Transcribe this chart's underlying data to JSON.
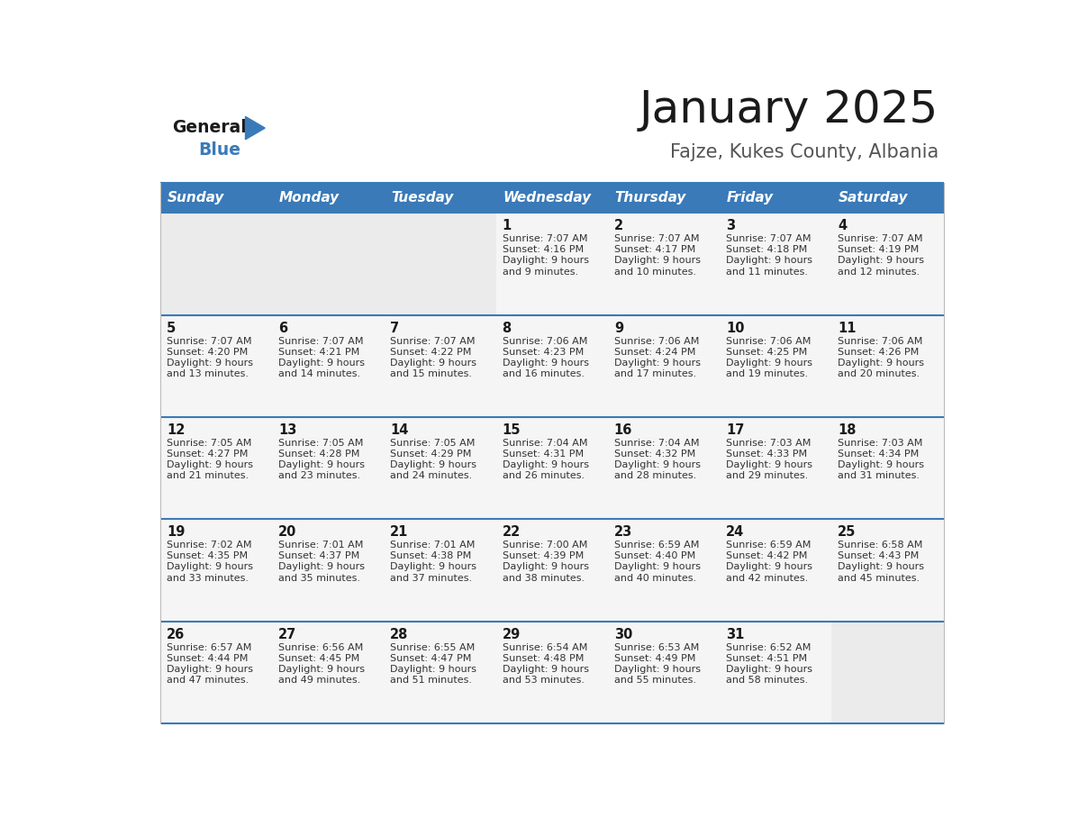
{
  "title": "January 2025",
  "subtitle": "Fajze, Kukes County, Albania",
  "header_color": "#3a7ab8",
  "header_text_color": "#ffffff",
  "border_color": "#3a7ab8",
  "days_of_week": [
    "Sunday",
    "Monday",
    "Tuesday",
    "Wednesday",
    "Thursday",
    "Friday",
    "Saturday"
  ],
  "weeks": [
    [
      {
        "day": "",
        "sunrise": "",
        "sunset": "",
        "daylight": ""
      },
      {
        "day": "",
        "sunrise": "",
        "sunset": "",
        "daylight": ""
      },
      {
        "day": "",
        "sunrise": "",
        "sunset": "",
        "daylight": ""
      },
      {
        "day": "1",
        "sunrise": "7:07 AM",
        "sunset": "4:16 PM",
        "daylight": "9 hours\nand 9 minutes."
      },
      {
        "day": "2",
        "sunrise": "7:07 AM",
        "sunset": "4:17 PM",
        "daylight": "9 hours\nand 10 minutes."
      },
      {
        "day": "3",
        "sunrise": "7:07 AM",
        "sunset": "4:18 PM",
        "daylight": "9 hours\nand 11 minutes."
      },
      {
        "day": "4",
        "sunrise": "7:07 AM",
        "sunset": "4:19 PM",
        "daylight": "9 hours\nand 12 minutes."
      }
    ],
    [
      {
        "day": "5",
        "sunrise": "7:07 AM",
        "sunset": "4:20 PM",
        "daylight": "9 hours\nand 13 minutes."
      },
      {
        "day": "6",
        "sunrise": "7:07 AM",
        "sunset": "4:21 PM",
        "daylight": "9 hours\nand 14 minutes."
      },
      {
        "day": "7",
        "sunrise": "7:07 AM",
        "sunset": "4:22 PM",
        "daylight": "9 hours\nand 15 minutes."
      },
      {
        "day": "8",
        "sunrise": "7:06 AM",
        "sunset": "4:23 PM",
        "daylight": "9 hours\nand 16 minutes."
      },
      {
        "day": "9",
        "sunrise": "7:06 AM",
        "sunset": "4:24 PM",
        "daylight": "9 hours\nand 17 minutes."
      },
      {
        "day": "10",
        "sunrise": "7:06 AM",
        "sunset": "4:25 PM",
        "daylight": "9 hours\nand 19 minutes."
      },
      {
        "day": "11",
        "sunrise": "7:06 AM",
        "sunset": "4:26 PM",
        "daylight": "9 hours\nand 20 minutes."
      }
    ],
    [
      {
        "day": "12",
        "sunrise": "7:05 AM",
        "sunset": "4:27 PM",
        "daylight": "9 hours\nand 21 minutes."
      },
      {
        "day": "13",
        "sunrise": "7:05 AM",
        "sunset": "4:28 PM",
        "daylight": "9 hours\nand 23 minutes."
      },
      {
        "day": "14",
        "sunrise": "7:05 AM",
        "sunset": "4:29 PM",
        "daylight": "9 hours\nand 24 minutes."
      },
      {
        "day": "15",
        "sunrise": "7:04 AM",
        "sunset": "4:31 PM",
        "daylight": "9 hours\nand 26 minutes."
      },
      {
        "day": "16",
        "sunrise": "7:04 AM",
        "sunset": "4:32 PM",
        "daylight": "9 hours\nand 28 minutes."
      },
      {
        "day": "17",
        "sunrise": "7:03 AM",
        "sunset": "4:33 PM",
        "daylight": "9 hours\nand 29 minutes."
      },
      {
        "day": "18",
        "sunrise": "7:03 AM",
        "sunset": "4:34 PM",
        "daylight": "9 hours\nand 31 minutes."
      }
    ],
    [
      {
        "day": "19",
        "sunrise": "7:02 AM",
        "sunset": "4:35 PM",
        "daylight": "9 hours\nand 33 minutes."
      },
      {
        "day": "20",
        "sunrise": "7:01 AM",
        "sunset": "4:37 PM",
        "daylight": "9 hours\nand 35 minutes."
      },
      {
        "day": "21",
        "sunrise": "7:01 AM",
        "sunset": "4:38 PM",
        "daylight": "9 hours\nand 37 minutes."
      },
      {
        "day": "22",
        "sunrise": "7:00 AM",
        "sunset": "4:39 PM",
        "daylight": "9 hours\nand 38 minutes."
      },
      {
        "day": "23",
        "sunrise": "6:59 AM",
        "sunset": "4:40 PM",
        "daylight": "9 hours\nand 40 minutes."
      },
      {
        "day": "24",
        "sunrise": "6:59 AM",
        "sunset": "4:42 PM",
        "daylight": "9 hours\nand 42 minutes."
      },
      {
        "day": "25",
        "sunrise": "6:58 AM",
        "sunset": "4:43 PM",
        "daylight": "9 hours\nand 45 minutes."
      }
    ],
    [
      {
        "day": "26",
        "sunrise": "6:57 AM",
        "sunset": "4:44 PM",
        "daylight": "9 hours\nand 47 minutes."
      },
      {
        "day": "27",
        "sunrise": "6:56 AM",
        "sunset": "4:45 PM",
        "daylight": "9 hours\nand 49 minutes."
      },
      {
        "day": "28",
        "sunrise": "6:55 AM",
        "sunset": "4:47 PM",
        "daylight": "9 hours\nand 51 minutes."
      },
      {
        "day": "29",
        "sunrise": "6:54 AM",
        "sunset": "4:48 PM",
        "daylight": "9 hours\nand 53 minutes."
      },
      {
        "day": "30",
        "sunrise": "6:53 AM",
        "sunset": "4:49 PM",
        "daylight": "9 hours\nand 55 minutes."
      },
      {
        "day": "31",
        "sunrise": "6:52 AM",
        "sunset": "4:51 PM",
        "daylight": "9 hours\nand 58 minutes."
      },
      {
        "day": "",
        "sunrise": "",
        "sunset": "",
        "daylight": ""
      }
    ]
  ],
  "title_fontsize": 36,
  "subtitle_fontsize": 15,
  "header_fontsize": 11,
  "day_num_fontsize": 10.5,
  "info_fontsize": 8.0
}
